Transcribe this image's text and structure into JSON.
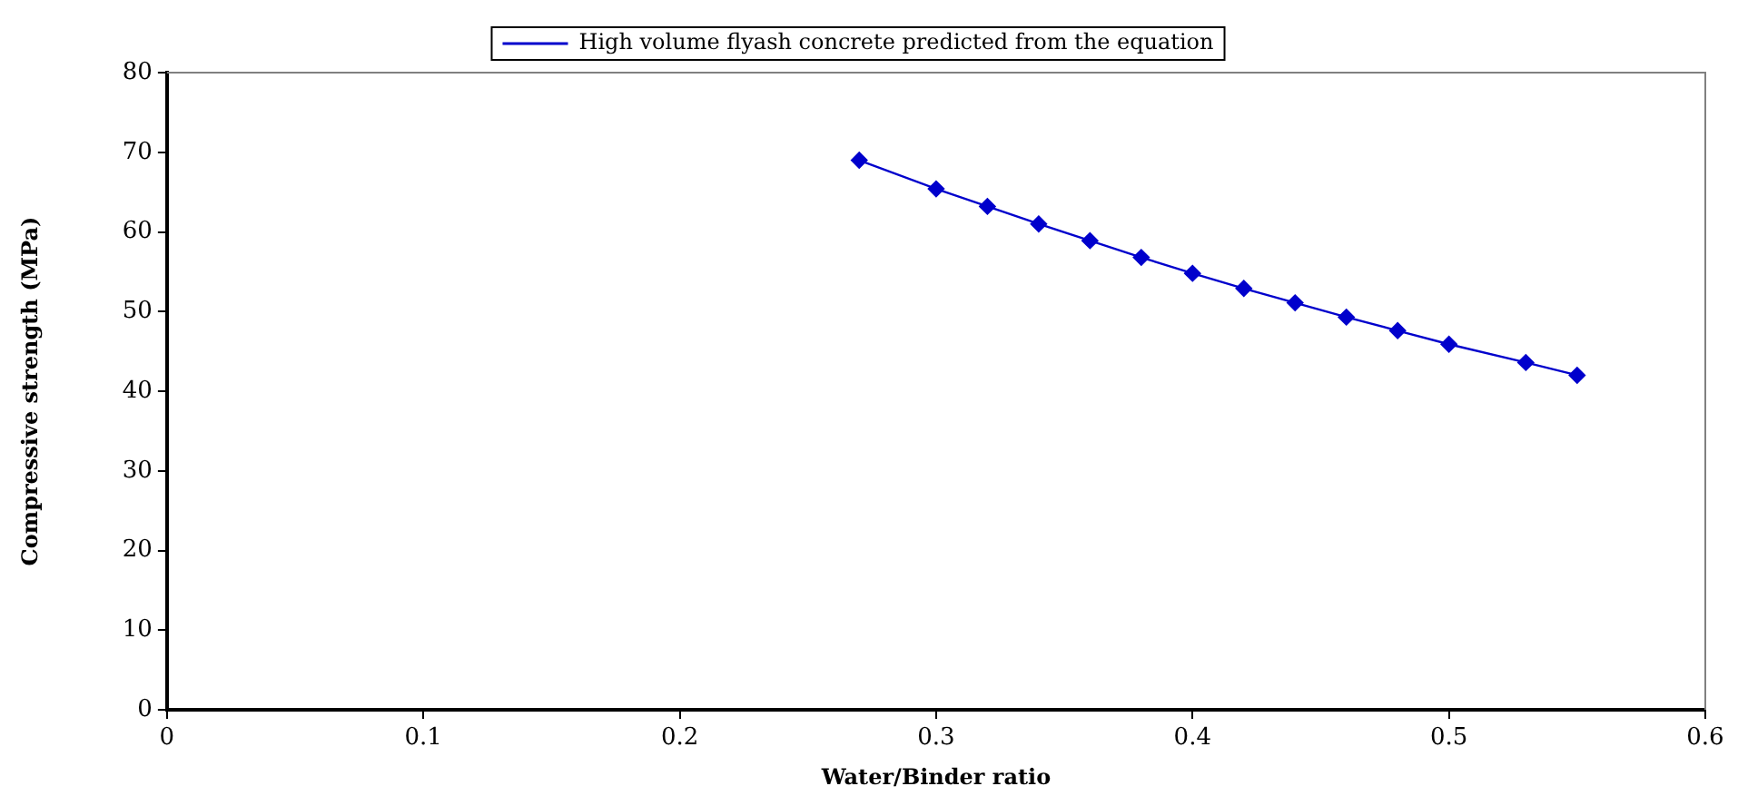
{
  "chart_data": {
    "type": "line",
    "xlabel": "Water/Binder ratio",
    "ylabel": "Compressive strength (MPa)",
    "x": [
      0.27,
      0.3,
      0.32,
      0.34,
      0.36,
      0.38,
      0.4,
      0.42,
      0.44,
      0.46,
      0.48,
      0.5,
      0.53,
      0.55
    ],
    "series": [
      {
        "name": "High volume flyash concrete predicted from the equation",
        "color": "#0000cc",
        "values": [
          69.0,
          65.4,
          63.2,
          61.0,
          58.9,
          56.8,
          54.8,
          52.9,
          51.1,
          49.3,
          47.6,
          45.9,
          43.6,
          42.0
        ]
      }
    ],
    "xlim": [
      0,
      0.6
    ],
    "xticks": [
      0,
      0.1,
      0.2,
      0.3,
      0.4,
      0.5,
      0.6
    ],
    "ylim": [
      0,
      80
    ],
    "yticks": [
      0,
      10,
      20,
      30,
      40,
      50,
      60,
      70,
      80
    ],
    "grid": false,
    "legend": "top",
    "marker": "diamond",
    "line_style": "solid"
  }
}
